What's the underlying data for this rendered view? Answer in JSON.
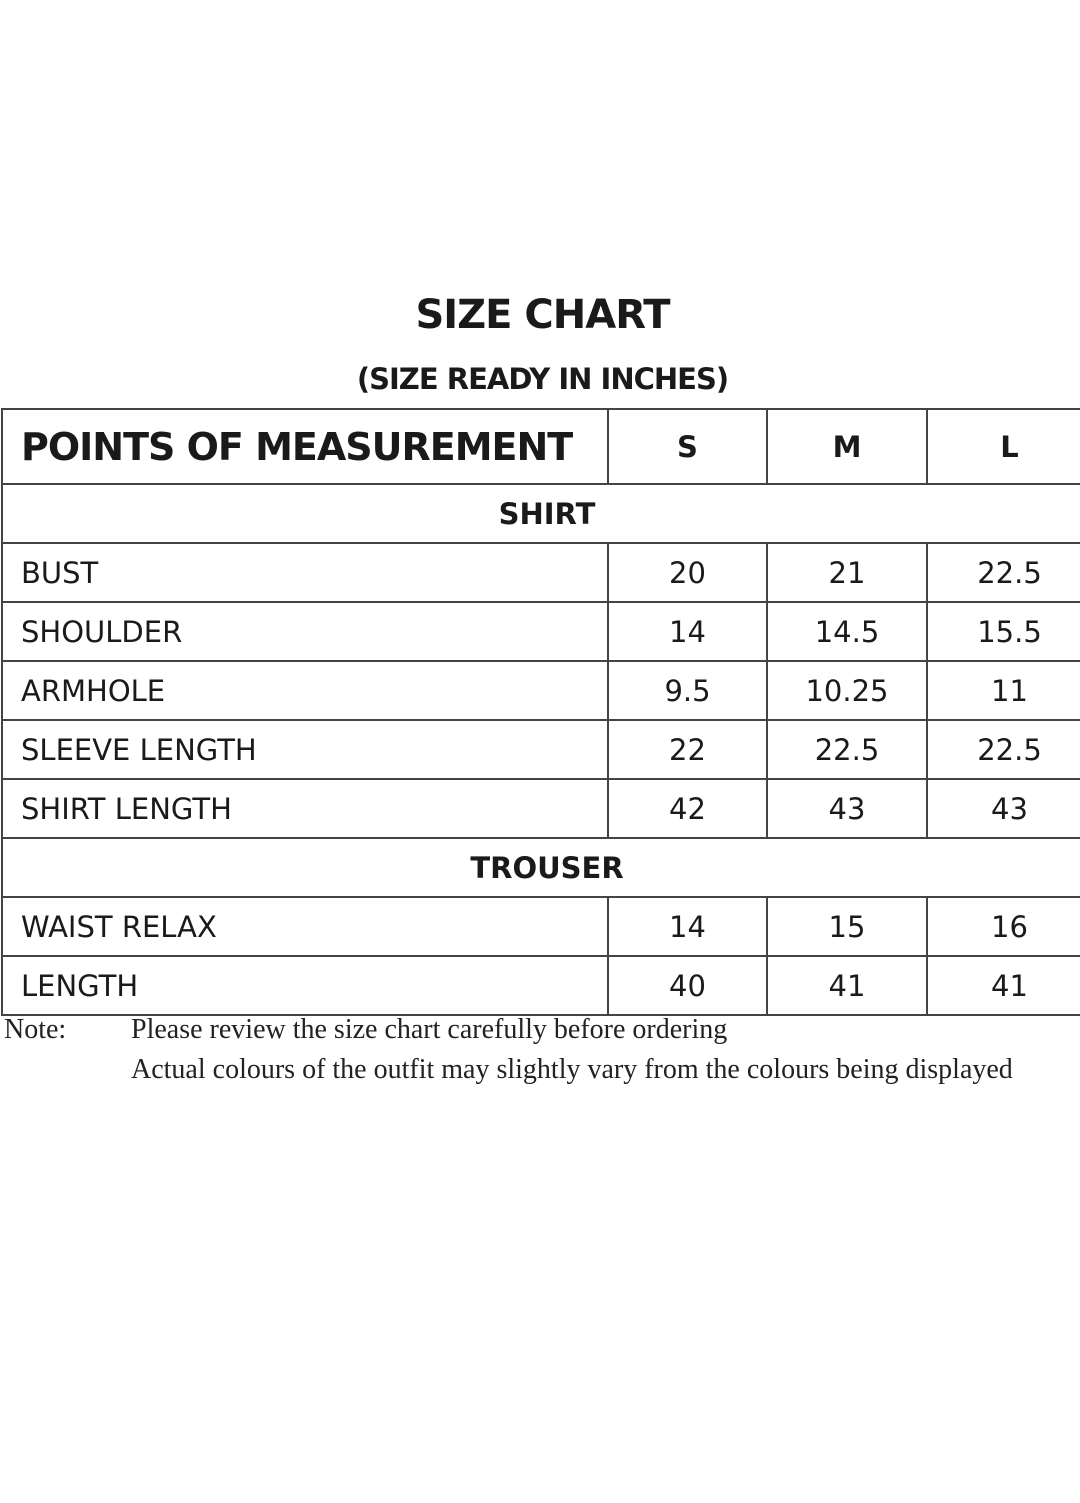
{
  "title": "SIZE CHART",
  "subtitle": "(SIZE READY IN INCHES)",
  "table": {
    "header": [
      "POINTS OF MEASUREMENT",
      "S",
      "M",
      "L"
    ],
    "sections": [
      {
        "name": "SHIRT",
        "rows": [
          [
            "BUST",
            "20",
            "21",
            "22.5"
          ],
          [
            "SHOULDER",
            "14",
            "14.5",
            "15.5"
          ],
          [
            "ARMHOLE",
            "9.5",
            "10.25",
            "11"
          ],
          [
            "SLEEVE LENGTH",
            "22",
            "22.5",
            "22.5"
          ],
          [
            "SHIRT LENGTH",
            "42",
            "43",
            "43"
          ]
        ]
      },
      {
        "name": "TROUSER",
        "rows": [
          [
            "WAIST RELAX",
            "14",
            "15",
            "16"
          ],
          [
            "LENGTH",
            "40",
            "41",
            "41"
          ]
        ]
      }
    ]
  },
  "note": {
    "label": "Note:",
    "lines": [
      "Please review the size chart carefully before ordering",
      "Actual colours of the outfit may slightly vary from the colours being displayed"
    ]
  }
}
